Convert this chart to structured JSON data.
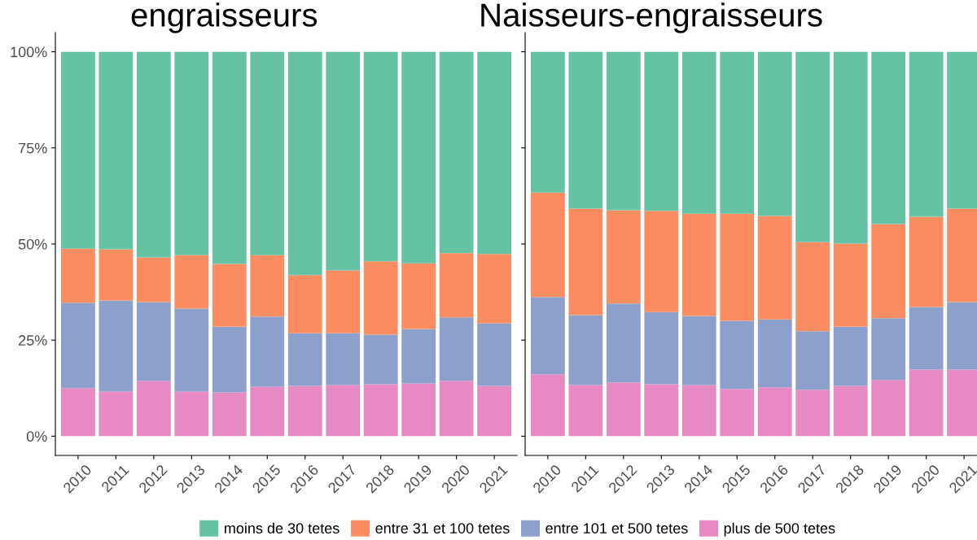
{
  "chart_data": [
    {
      "type": "bar",
      "title": "engraisseurs",
      "stacked": true,
      "legend": "bottom",
      "categories": [
        "2010",
        "2011",
        "2012",
        "2013",
        "2014",
        "2015",
        "2016",
        "2017",
        "2018",
        "2019",
        "2020",
        "2021"
      ],
      "ylim": [
        -5,
        105
      ],
      "yticks": [
        {
          "value": 0,
          "label": "0%"
        },
        {
          "value": 25,
          "label": "25%"
        },
        {
          "value": 50,
          "label": "50%"
        },
        {
          "value": 75,
          "label": "75%"
        },
        {
          "value": 100,
          "label": "100%"
        }
      ],
      "series": [
        {
          "name": "plus de 500 tetes",
          "color": "#e78ac3",
          "values": [
            12.5,
            11.6,
            14.4,
            11.6,
            11.4,
            12.9,
            13.1,
            13.3,
            13.5,
            13.7,
            14.4,
            13.1
          ]
        },
        {
          "name": "entre 101 et 500 tetes",
          "color": "#8da0cb",
          "values": [
            22.2,
            23.7,
            20.5,
            21.6,
            17.1,
            18.2,
            13.7,
            13.5,
            12.9,
            14.2,
            16.5,
            16.3
          ]
        },
        {
          "name": "entre 31 et 100 tetes",
          "color": "#fc8d62",
          "values": [
            14.1,
            13.3,
            11.6,
            13.9,
            16.3,
            16.0,
            15.1,
            16.3,
            19.1,
            17.1,
            16.7,
            18.0
          ]
        },
        {
          "name": "moins de 30 tetes",
          "color": "#66c2a5",
          "values": [
            51.2,
            51.4,
            53.5,
            52.9,
            55.2,
            52.9,
            58.1,
            56.9,
            54.5,
            55.0,
            52.4,
            52.6
          ]
        }
      ]
    },
    {
      "type": "bar",
      "title": "Naisseurs-engraisseurs",
      "stacked": true,
      "legend": "bottom",
      "tick_labels": "x",
      "categories": [
        "2010",
        "2011",
        "2012",
        "2013",
        "2014",
        "2015",
        "2016",
        "2017",
        "2018",
        "2019",
        "2020",
        "2021"
      ],
      "ylim": [
        -5,
        105
      ],
      "yticks": [
        {
          "value": 0,
          "label": null
        },
        {
          "value": 25,
          "label": null
        },
        {
          "value": 50,
          "label": null
        },
        {
          "value": 75,
          "label": null
        },
        {
          "value": 100,
          "label": null
        }
      ],
      "series": [
        {
          "name": "plus de 500 tetes",
          "color": "#e78ac3",
          "values": [
            16.1,
            13.3,
            14.0,
            13.5,
            13.3,
            12.3,
            12.7,
            12.1,
            13.1,
            14.6,
            17.3,
            17.3
          ]
        },
        {
          "name": "entre 101 et 500 tetes",
          "color": "#8da0cb",
          "values": [
            20.1,
            18.2,
            20.5,
            18.8,
            18.0,
            17.7,
            17.7,
            15.2,
            15.4,
            16.1,
            16.3,
            17.6
          ]
        },
        {
          "name": "entre 31 et 100 tetes",
          "color": "#fc8d62",
          "values": [
            27.2,
            27.7,
            24.3,
            26.3,
            26.6,
            27.9,
            26.9,
            23.2,
            21.6,
            24.5,
            23.5,
            24.3
          ]
        },
        {
          "name": "moins de 30 tetes",
          "color": "#66c2a5",
          "values": [
            36.6,
            40.8,
            41.2,
            41.4,
            42.1,
            42.1,
            42.7,
            49.5,
            49.9,
            44.8,
            42.9,
            40.8
          ]
        }
      ]
    }
  ]
}
